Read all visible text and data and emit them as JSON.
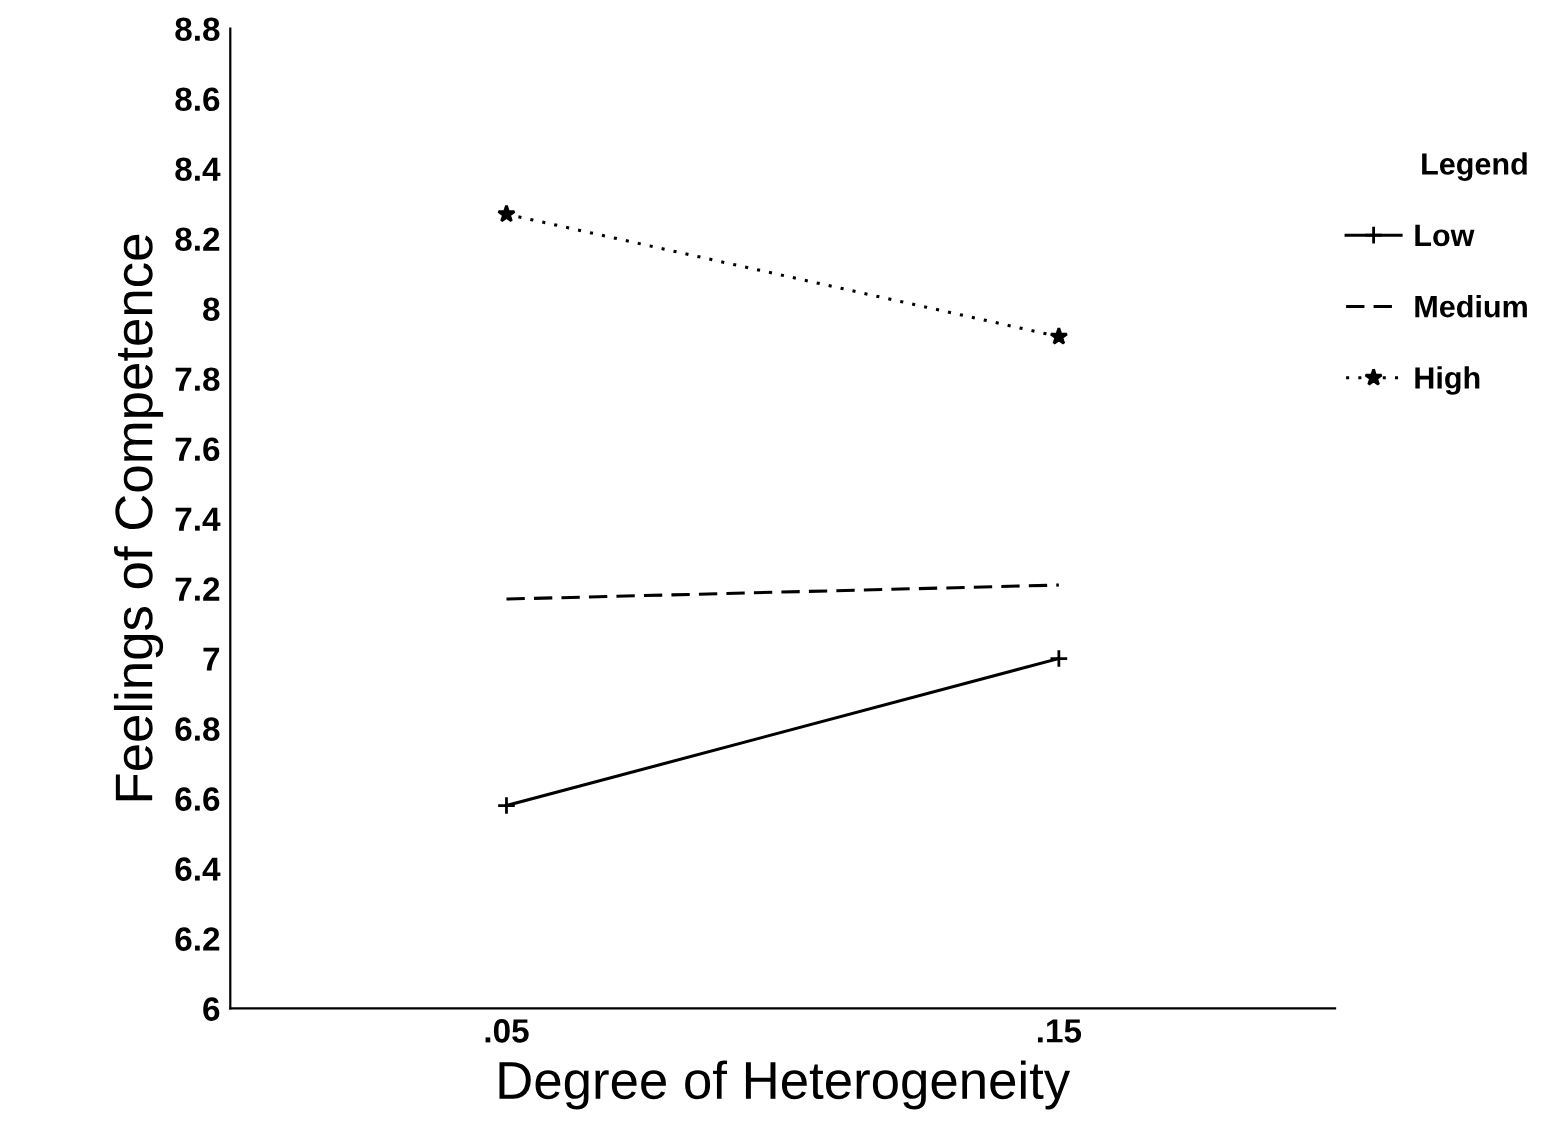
{
  "chart_data": {
    "type": "line",
    "xlabel": "Degree of Heterogeneity",
    "ylabel": "Feelings of Competence",
    "categories": [
      ".05",
      ".15"
    ],
    "series": [
      {
        "name": "Low",
        "color": "#000000",
        "values": [
          6.58,
          7.0
        ],
        "marker": "cross",
        "line_style": "solid"
      },
      {
        "name": "Medium",
        "color": "#000000",
        "values": [
          7.17,
          7.21
        ],
        "marker": "none",
        "line_style": "dashed"
      },
      {
        "name": "High",
        "color": "#000000",
        "values": [
          8.27,
          7.92
        ],
        "marker": "star",
        "line_style": "dotted"
      }
    ],
    "ylim": [
      6,
      8.8
    ],
    "yticks": [
      6,
      6.2,
      6.4,
      6.6,
      6.8,
      7,
      7.2,
      7.4,
      7.6,
      7.8,
      8,
      8.2,
      8.4,
      8.6,
      8.8
    ],
    "legend_title": "Legend",
    "legend": "right",
    "grid": false
  }
}
